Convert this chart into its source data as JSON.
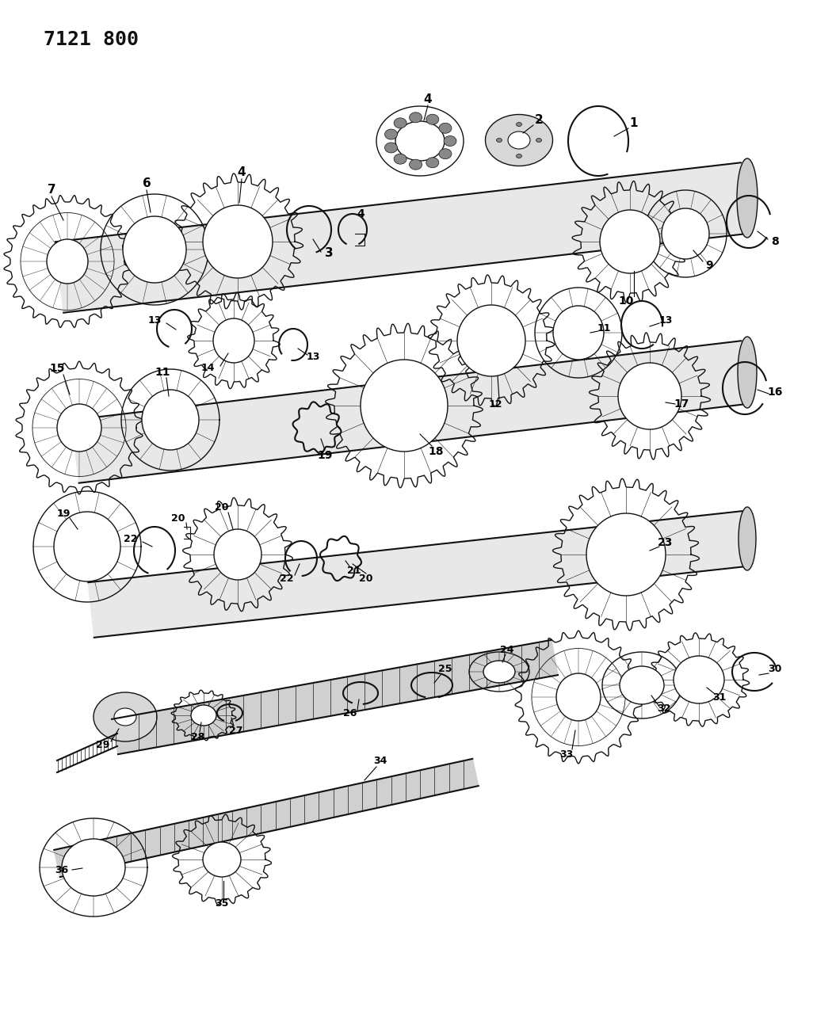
{
  "title": "7121 800",
  "bg": "#ffffff",
  "lc": "#111111",
  "fig_w": 10.26,
  "fig_h": 12.75,
  "dpi": 100
}
